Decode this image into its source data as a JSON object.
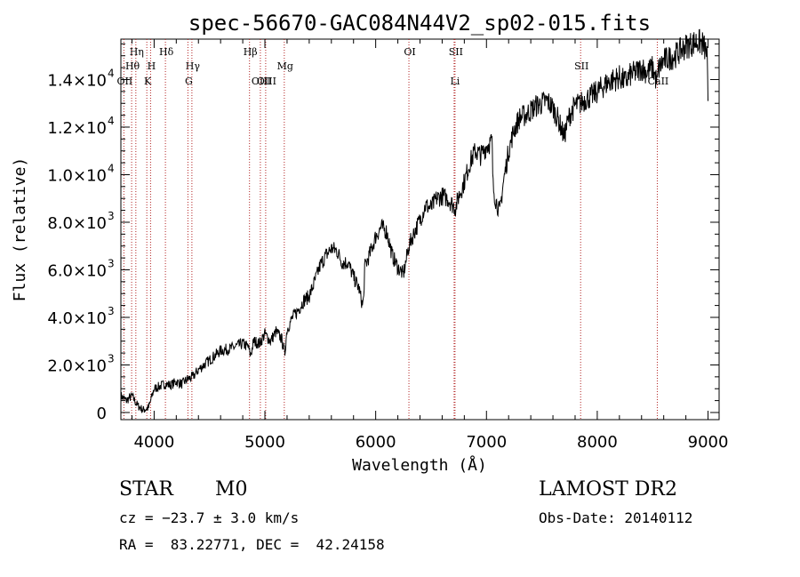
{
  "chart_data": {
    "type": "line",
    "title": "spec-56670-GAC084N44V2_sp02-015.fits",
    "xlabel": "Wavelength (Å)",
    "ylabel": "Flux (relative)",
    "xlim": [
      3700,
      9100
    ],
    "ylim": [
      -300,
      15700
    ],
    "x_ticks": [
      4000,
      5000,
      6000,
      7000,
      8000,
      9000
    ],
    "x_tick_labels": [
      "4000",
      "5000",
      "6000",
      "7000",
      "8000",
      "9000"
    ],
    "y_ticks": [
      {
        "value": 0,
        "mantissa": "0",
        "exponent": ""
      },
      {
        "value": 2000,
        "mantissa": "2.0×10",
        "exponent": "3"
      },
      {
        "value": 4000,
        "mantissa": "4.0×10",
        "exponent": "3"
      },
      {
        "value": 6000,
        "mantissa": "6.0×10",
        "exponent": "3"
      },
      {
        "value": 8000,
        "mantissa": "8.0×10",
        "exponent": "3"
      },
      {
        "value": 10000,
        "mantissa": "1.0×10",
        "exponent": "4"
      },
      {
        "value": 12000,
        "mantissa": "1.2×10",
        "exponent": "4"
      },
      {
        "value": 14000,
        "mantissa": "1.4×10",
        "exponent": "4"
      }
    ],
    "series": [
      {
        "name": "flux",
        "x": [
          3700,
          3750,
          3800,
          3850,
          3900,
          3950,
          4000,
          4050,
          4100,
          4150,
          4200,
          4250,
          4300,
          4350,
          4400,
          4450,
          4500,
          4550,
          4600,
          4700,
          4800,
          4850,
          4870,
          4900,
          4950,
          5000,
          5050,
          5100,
          5150,
          5180,
          5200,
          5250,
          5300,
          5350,
          5400,
          5450,
          5500,
          5550,
          5600,
          5650,
          5700,
          5750,
          5800,
          5850,
          5880,
          5892,
          5900,
          5950,
          6000,
          6050,
          6100,
          6150,
          6200,
          6250,
          6300,
          6350,
          6400,
          6450,
          6500,
          6550,
          6600,
          6650,
          6700,
          6720,
          6750,
          6800,
          6850,
          6900,
          6950,
          7000,
          7050,
          7060,
          7080,
          7100,
          7120,
          7150,
          7200,
          7250,
          7300,
          7350,
          7400,
          7450,
          7500,
          7550,
          7600,
          7650,
          7700,
          7750,
          7800,
          7850,
          7900,
          7950,
          8000,
          8050,
          8100,
          8150,
          8200,
          8250,
          8300,
          8350,
          8400,
          8450,
          8500,
          8542,
          8550,
          8600,
          8650,
          8700,
          8750,
          8800,
          8850,
          8900,
          8950,
          8990,
          9000
        ],
        "y": [
          700,
          500,
          700,
          300,
          100,
          200,
          1000,
          1100,
          1200,
          1150,
          1300,
          1200,
          1400,
          1500,
          1800,
          2000,
          2200,
          2400,
          2600,
          2700,
          2900,
          2750,
          2400,
          3000,
          2900,
          3300,
          3000,
          3400,
          3100,
          2500,
          3500,
          4000,
          4300,
          4700,
          4900,
          5500,
          6200,
          6600,
          6900,
          6800,
          6300,
          6300,
          5700,
          5200,
          4500,
          4800,
          6100,
          6700,
          7400,
          7800,
          7600,
          6600,
          6100,
          5800,
          7000,
          7600,
          8100,
          8700,
          8600,
          9000,
          9100,
          9000,
          8700,
          8600,
          9100,
          9700,
          10500,
          11000,
          10800,
          11200,
          11400,
          9500,
          9000,
          8700,
          8400,
          9600,
          11000,
          11900,
          12400,
          12500,
          12700,
          12900,
          13000,
          13100,
          12800,
          12300,
          11600,
          12500,
          12900,
          13000,
          13200,
          13300,
          13500,
          13700,
          13900,
          14000,
          14100,
          13900,
          14200,
          14300,
          14500,
          14300,
          14500,
          13800,
          14400,
          14800,
          14900,
          15000,
          15200,
          15400,
          15500,
          15600,
          15500,
          15100,
          13100
        ]
      }
    ],
    "line_markers": [
      {
        "label": "Hη",
        "x": 3835,
        "row": 0
      },
      {
        "label": "Hθ",
        "x": 3797,
        "row": 1
      },
      {
        "label": "OII",
        "x": 3727,
        "row": 2
      },
      {
        "label": "H",
        "x": 3968,
        "row": 1
      },
      {
        "label": "K",
        "x": 3934,
        "row": 2
      },
      {
        "label": "Hδ",
        "x": 4102,
        "row": 0
      },
      {
        "label": "Hγ",
        "x": 4341,
        "row": 1
      },
      {
        "label": "G",
        "x": 4305,
        "row": 2
      },
      {
        "label": "Hβ",
        "x": 4861,
        "row": 0
      },
      {
        "label": "OIII",
        "x": 4959,
        "row": 2
      },
      {
        "label": "OIII",
        "x": 5007,
        "row": 2
      },
      {
        "label": "Mg",
        "x": 5175,
        "row": 1
      },
      {
        "label": "OI",
        "x": 6300,
        "row": 0
      },
      {
        "label": "SII",
        "x": 6716,
        "row": 0
      },
      {
        "label": "Li",
        "x": 6708,
        "row": 2
      },
      {
        "label": "SII",
        "x": 7850,
        "row": 1
      },
      {
        "label": "CaII",
        "x": 8542,
        "row": 2
      }
    ]
  },
  "footer": {
    "object_class": "STAR",
    "subclass": "M0",
    "survey": "LAMOST DR2",
    "redshift": "cz = −23.7 ± 3.0 km/s",
    "obs_date": "Obs-Date: 20140112",
    "coords": "RA =  83.22771, DEC =  42.24158"
  }
}
